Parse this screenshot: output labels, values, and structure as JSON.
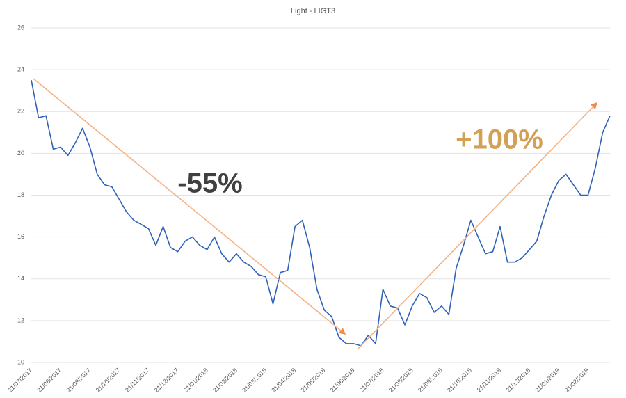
{
  "chart_data": {
    "type": "line",
    "title": "Light - LIGT3",
    "categories": [
      "21/07/2017",
      null,
      null,
      null,
      "21/08/2017",
      null,
      null,
      null,
      "21/09/2017",
      null,
      null,
      null,
      "21/10/2017",
      null,
      null,
      null,
      "21/11/2017",
      null,
      null,
      null,
      "21/12/2017",
      null,
      null,
      null,
      "21/01/2018",
      null,
      null,
      null,
      "21/02/2018",
      null,
      null,
      null,
      "21/03/2018",
      null,
      null,
      null,
      "21/04/2018",
      null,
      null,
      null,
      "21/05/2018",
      null,
      null,
      null,
      "21/06/2018",
      null,
      null,
      null,
      "21/07/2018",
      null,
      null,
      null,
      "21/08/2018",
      null,
      null,
      null,
      "21/09/2018",
      null,
      null,
      null,
      "21/10/2018",
      null,
      null,
      null,
      "21/11/2018",
      null,
      null,
      null,
      "21/12/2018",
      null,
      null,
      null,
      "21/01/2019",
      null,
      null,
      null,
      "21/02/2019",
      null,
      null,
      null
    ],
    "series": [
      {
        "name": "LIGT3",
        "color": "#2e62b8",
        "values": [
          23.5,
          21.7,
          21.8,
          20.2,
          20.3,
          19.9,
          20.5,
          21.2,
          20.3,
          19.0,
          18.5,
          18.4,
          17.8,
          17.2,
          16.8,
          16.6,
          16.4,
          15.6,
          16.5,
          15.5,
          15.3,
          15.8,
          16.0,
          15.6,
          15.4,
          16.0,
          15.2,
          14.8,
          15.2,
          14.8,
          14.6,
          14.2,
          14.1,
          12.8,
          14.3,
          14.4,
          16.5,
          16.8,
          15.5,
          13.5,
          12.5,
          12.2,
          11.2,
          10.9,
          10.9,
          10.8,
          11.3,
          10.9,
          13.5,
          12.7,
          12.6,
          11.8,
          12.7,
          13.3,
          13.1,
          12.4,
          12.7,
          12.3,
          14.5,
          15.6,
          16.8,
          16.0,
          15.2,
          15.3,
          16.5,
          14.8,
          14.8,
          15.0,
          15.4,
          15.8,
          17.0,
          18.0,
          18.7,
          19.0,
          18.5,
          18.0,
          18.0,
          19.3,
          21.0,
          21.8
        ]
      }
    ],
    "ylim": [
      10,
      26
    ],
    "yticks": [
      10,
      12,
      14,
      16,
      18,
      20,
      22,
      24,
      26
    ],
    "grid": true,
    "annotations": [
      {
        "text": "-55%",
        "color": "#404040"
      },
      {
        "text": "+100%",
        "color": "#d4a055"
      }
    ]
  }
}
